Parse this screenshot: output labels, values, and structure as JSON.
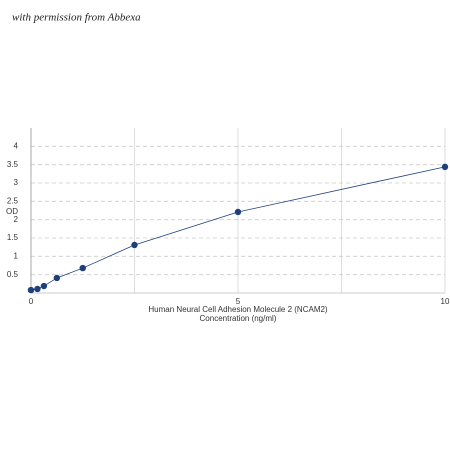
{
  "watermark": "with permission from Abbexa",
  "chart_data": {
    "type": "line",
    "x_label": [
      "Human Neural Cell Adhesion Molecule 2 (NCAM2)",
      "Concentration (ng/ml)"
    ],
    "y_label": "OD",
    "x": [
      0,
      0.156,
      0.312,
      0.625,
      1.25,
      2.5,
      5,
      10
    ],
    "series": [
      {
        "color": "#1f3f7a",
        "values": [
          0.08,
          0.11,
          0.19,
          0.41,
          0.68,
          1.31,
          2.21,
          3.44
        ]
      }
    ],
    "xlim": [
      0,
      10
    ],
    "xticks": [
      0,
      5,
      10
    ],
    "x_grid_lines": [
      2.5,
      5,
      7.5,
      10
    ],
    "ylim": [
      0,
      4.5
    ],
    "yticks": [
      0.5,
      1,
      1.5,
      2,
      2.5,
      3,
      3.5,
      4
    ],
    "grid": true
  }
}
